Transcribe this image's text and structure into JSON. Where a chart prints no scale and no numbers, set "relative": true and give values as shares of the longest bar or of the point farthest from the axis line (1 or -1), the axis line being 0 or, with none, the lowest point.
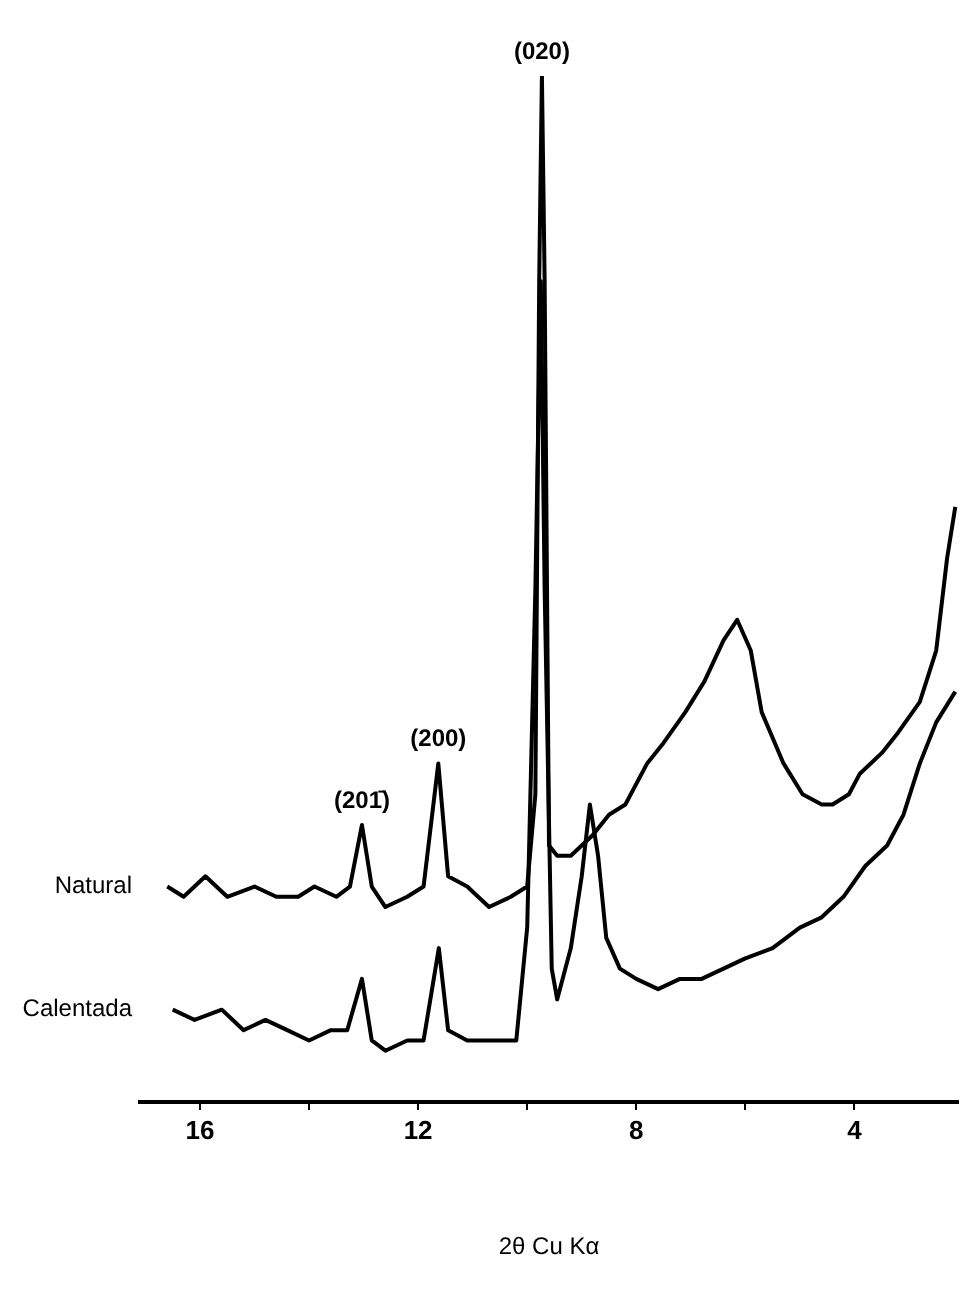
{
  "chart_data": {
    "type": "line",
    "relative": true,
    "xlabel": "2θ Cu Kα",
    "xlim": [
      17.1,
      2.1
    ],
    "xticks": [
      16,
      {
        "value": 14,
        "label": null
      },
      12,
      {
        "value": 10,
        "label": null
      },
      8,
      {
        "value": 6,
        "label": null
      },
      4
    ],
    "legend": false,
    "grid": false,
    "marker": "none",
    "line_style": "solid",
    "annotations": [
      {
        "text": "(020)",
        "x": 9.73,
        "y": 1.0
      },
      {
        "text": "(200)",
        "x": 11.63,
        "y": 0.33
      },
      {
        "text": "(201̄)",
        "x": 13.03,
        "y": 0.27
      }
    ],
    "series": [
      {
        "name": "Natural",
        "color": "#000000",
        "x": [
          16.6,
          16.3,
          15.9,
          15.5,
          15.0,
          14.6,
          14.2,
          13.9,
          13.5,
          13.25,
          13.03,
          12.85,
          12.6,
          12.2,
          11.9,
          11.63,
          11.45,
          11.1,
          10.7,
          10.3,
          10.0,
          9.85,
          9.78,
          9.73,
          9.68,
          9.6,
          9.45,
          9.2,
          8.8,
          8.5,
          8.2,
          7.8,
          7.5,
          7.1,
          6.75,
          6.4,
          6.15,
          5.9,
          5.7,
          5.3,
          4.95,
          4.6,
          4.4,
          4.1,
          3.9,
          3.5,
          3.2,
          2.8,
          2.5,
          2.3,
          2.15
        ],
        "values": [
          0.21,
          0.2,
          0.22,
          0.2,
          0.21,
          0.2,
          0.2,
          0.21,
          0.2,
          0.21,
          0.27,
          0.21,
          0.19,
          0.2,
          0.21,
          0.33,
          0.22,
          0.21,
          0.19,
          0.2,
          0.21,
          0.3,
          0.8,
          1.0,
          0.8,
          0.25,
          0.24,
          0.24,
          0.26,
          0.28,
          0.29,
          0.33,
          0.35,
          0.38,
          0.41,
          0.45,
          0.47,
          0.44,
          0.38,
          0.33,
          0.3,
          0.29,
          0.29,
          0.3,
          0.32,
          0.34,
          0.36,
          0.39,
          0.44,
          0.53,
          0.58
        ]
      },
      {
        "name": "Calentada",
        "color": "#000000",
        "x": [
          16.5,
          16.1,
          15.6,
          15.2,
          14.8,
          14.4,
          14.0,
          13.6,
          13.3,
          13.03,
          12.85,
          12.6,
          12.2,
          11.9,
          11.62,
          11.45,
          11.1,
          10.7,
          10.35,
          10.2,
          10.0,
          9.85,
          9.75,
          9.68,
          9.55,
          9.45,
          9.2,
          9.0,
          8.85,
          8.7,
          8.55,
          8.3,
          8.0,
          7.6,
          7.2,
          6.8,
          6.4,
          6.0,
          5.5,
          5.0,
          4.6,
          4.2,
          3.8,
          3.4,
          3.1,
          2.8,
          2.5,
          2.15
        ],
        "values": [
          0.09,
          0.08,
          0.09,
          0.07,
          0.08,
          0.07,
          0.06,
          0.07,
          0.07,
          0.12,
          0.06,
          0.05,
          0.06,
          0.06,
          0.15,
          0.07,
          0.06,
          0.06,
          0.06,
          0.06,
          0.17,
          0.5,
          0.8,
          0.5,
          0.13,
          0.1,
          0.15,
          0.22,
          0.29,
          0.24,
          0.16,
          0.13,
          0.12,
          0.11,
          0.12,
          0.12,
          0.13,
          0.14,
          0.15,
          0.17,
          0.18,
          0.2,
          0.23,
          0.25,
          0.28,
          0.33,
          0.37,
          0.4
        ]
      }
    ]
  }
}
